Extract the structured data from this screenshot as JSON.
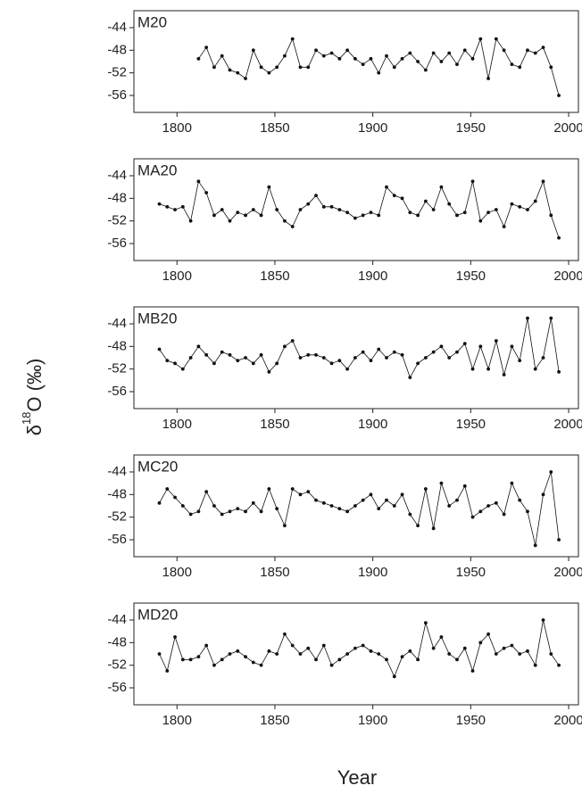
{
  "shared": {
    "x_label": "Year",
    "y_label": {
      "symbol": "δ",
      "sup": "18",
      "rest": "O (‰)"
    }
  },
  "chart_data": [
    {
      "type": "line",
      "xlim": [
        1778,
        2005
      ],
      "xticks": [
        1800,
        1850,
        1900,
        1950,
        2000
      ],
      "ylim": [
        -59,
        -41
      ],
      "yticks": [
        -44,
        -48,
        -52,
        -56
      ],
      "x": [
        1811,
        1815,
        1819,
        1823,
        1827,
        1831,
        1835,
        1839,
        1843,
        1847,
        1851,
        1855,
        1859,
        1863,
        1867,
        1871,
        1875,
        1879,
        1883,
        1887,
        1891,
        1895,
        1899,
        1903,
        1907,
        1911,
        1915,
        1919,
        1923,
        1927,
        1931,
        1935,
        1939,
        1943,
        1947,
        1951,
        1955,
        1959,
        1963,
        1967,
        1971,
        1975,
        1979,
        1983,
        1987,
        1991,
        1995
      ],
      "series": [
        {
          "name": "M20",
          "color": "#111111",
          "values": [
            -49.5,
            -47.5,
            -51,
            -49,
            -51.5,
            -52,
            -53,
            -48,
            -51,
            -52,
            -51,
            -49,
            -46,
            -51,
            -51,
            -48,
            -49,
            -48.5,
            -49.5,
            -48,
            -49.5,
            -50.5,
            -49.5,
            -52,
            -49,
            -51,
            -49.5,
            -48.5,
            -50,
            -51.5,
            -48.5,
            -50,
            -48.5,
            -50.5,
            -48,
            -49.5,
            -46,
            -53,
            -46,
            -48,
            -50.5,
            -51,
            -48,
            -48.5,
            -47.5,
            -51,
            -56
          ]
        }
      ]
    },
    {
      "type": "line",
      "xlim": [
        1778,
        2005
      ],
      "xticks": [
        1800,
        1850,
        1900,
        1950,
        2000
      ],
      "ylim": [
        -59,
        -41
      ],
      "yticks": [
        -44,
        -48,
        -52,
        -56
      ],
      "x": [
        1791,
        1795,
        1799,
        1803,
        1807,
        1811,
        1815,
        1819,
        1823,
        1827,
        1831,
        1835,
        1839,
        1843,
        1847,
        1851,
        1855,
        1859,
        1863,
        1867,
        1871,
        1875,
        1879,
        1883,
        1887,
        1891,
        1895,
        1899,
        1903,
        1907,
        1911,
        1915,
        1919,
        1923,
        1927,
        1931,
        1935,
        1939,
        1943,
        1947,
        1951,
        1955,
        1959,
        1963,
        1967,
        1971,
        1975,
        1979,
        1983,
        1987,
        1991,
        1995
      ],
      "series": [
        {
          "name": "MA20",
          "color": "#111111",
          "values": [
            -49,
            -49.5,
            -50,
            -49.5,
            -52,
            -45,
            -47,
            -51,
            -50,
            -52,
            -50.5,
            -51,
            -50,
            -51,
            -46,
            -50,
            -52,
            -53,
            -50,
            -49,
            -47.5,
            -49.5,
            -49.5,
            -50,
            -50.5,
            -51.5,
            -51,
            -50.5,
            -51,
            -46,
            -47.5,
            -48,
            -50.5,
            -51,
            -48.5,
            -50,
            -46,
            -49,
            -51,
            -50.5,
            -45,
            -52,
            -50.5,
            -50,
            -53,
            -49,
            -49.5,
            -50,
            -48.5,
            -45,
            -51,
            -55
          ]
        }
      ]
    },
    {
      "type": "line",
      "xlim": [
        1778,
        2005
      ],
      "xticks": [
        1800,
        1850,
        1900,
        1950,
        2000
      ],
      "ylim": [
        -59,
        -41
      ],
      "yticks": [
        -44,
        -48,
        -52,
        -56
      ],
      "x": [
        1791,
        1795,
        1799,
        1803,
        1807,
        1811,
        1815,
        1819,
        1823,
        1827,
        1831,
        1835,
        1839,
        1843,
        1847,
        1851,
        1855,
        1859,
        1863,
        1867,
        1871,
        1875,
        1879,
        1883,
        1887,
        1891,
        1895,
        1899,
        1903,
        1907,
        1911,
        1915,
        1919,
        1923,
        1927,
        1931,
        1935,
        1939,
        1943,
        1947,
        1951,
        1955,
        1959,
        1963,
        1967,
        1971,
        1975,
        1979,
        1983,
        1987,
        1991,
        1995
      ],
      "series": [
        {
          "name": "MB20",
          "color": "#111111",
          "values": [
            -48.5,
            -50.5,
            -51,
            -52,
            -50,
            -48,
            -49.5,
            -51,
            -49,
            -49.5,
            -50.5,
            -50,
            -51,
            -49.5,
            -52.5,
            -51,
            -48,
            -47,
            -50,
            -49.5,
            -49.5,
            -50,
            -51,
            -50.5,
            -52,
            -50,
            -49,
            -50.5,
            -48.5,
            -50,
            -49,
            -49.5,
            -53.5,
            -51,
            -50,
            -49,
            -48,
            -50,
            -49,
            -47.5,
            -52,
            -48,
            -52,
            -47,
            -53,
            -48,
            -50.5,
            -43,
            -52,
            -50,
            -43,
            -52.5
          ]
        }
      ]
    },
    {
      "type": "line",
      "xlim": [
        1778,
        2005
      ],
      "xticks": [
        1800,
        1850,
        1900,
        1950,
        2000
      ],
      "ylim": [
        -59,
        -41
      ],
      "yticks": [
        -44,
        -48,
        -52,
        -56
      ],
      "x": [
        1791,
        1795,
        1799,
        1803,
        1807,
        1811,
        1815,
        1819,
        1823,
        1827,
        1831,
        1835,
        1839,
        1843,
        1847,
        1851,
        1855,
        1859,
        1863,
        1867,
        1871,
        1875,
        1879,
        1883,
        1887,
        1891,
        1895,
        1899,
        1903,
        1907,
        1911,
        1915,
        1919,
        1923,
        1927,
        1931,
        1935,
        1939,
        1943,
        1947,
        1951,
        1955,
        1959,
        1963,
        1967,
        1971,
        1975,
        1979,
        1983,
        1987,
        1991,
        1995
      ],
      "series": [
        {
          "name": "MC20",
          "color": "#111111",
          "values": [
            -49.5,
            -47,
            -48.5,
            -50,
            -51.5,
            -51,
            -47.5,
            -50,
            -51.5,
            -51,
            -50.5,
            -51,
            -49.5,
            -51,
            -47,
            -50.5,
            -53.5,
            -47,
            -48,
            -47.5,
            -49,
            -49.5,
            -50,
            -50.5,
            -51,
            -50,
            -49,
            -48,
            -50.5,
            -49,
            -50,
            -48,
            -51.5,
            -53.5,
            -47,
            -54,
            -46,
            -50,
            -49,
            -46.5,
            -52,
            -51,
            -50,
            -49.5,
            -51.5,
            -46,
            -49,
            -51,
            -57,
            -48,
            -44,
            -56
          ]
        }
      ]
    },
    {
      "type": "line",
      "xlim": [
        1778,
        2005
      ],
      "xticks": [
        1800,
        1850,
        1900,
        1950,
        2000
      ],
      "ylim": [
        -59,
        -41
      ],
      "yticks": [
        -44,
        -48,
        -52,
        -56
      ],
      "x": [
        1791,
        1795,
        1799,
        1803,
        1807,
        1811,
        1815,
        1819,
        1823,
        1827,
        1831,
        1835,
        1839,
        1843,
        1847,
        1851,
        1855,
        1859,
        1863,
        1867,
        1871,
        1875,
        1879,
        1883,
        1887,
        1891,
        1895,
        1899,
        1903,
        1907,
        1911,
        1915,
        1919,
        1923,
        1927,
        1931,
        1935,
        1939,
        1943,
        1947,
        1951,
        1955,
        1959,
        1963,
        1967,
        1971,
        1975,
        1979,
        1983,
        1987,
        1991,
        1995
      ],
      "series": [
        {
          "name": "MD20",
          "color": "#111111",
          "values": [
            -50,
            -53,
            -47,
            -51,
            -51,
            -50.5,
            -48.5,
            -52,
            -51,
            -50,
            -49.5,
            -50.5,
            -51.5,
            -52,
            -49.5,
            -50,
            -46.5,
            -48.5,
            -50,
            -49,
            -51,
            -48.5,
            -52,
            -51,
            -50,
            -49,
            -48.5,
            -49.5,
            -50,
            -51,
            -54,
            -50.5,
            -49.5,
            -51,
            -44.5,
            -49,
            -47,
            -50,
            -51,
            -49,
            -53,
            -48,
            -46.5,
            -50,
            -49,
            -48.5,
            -50,
            -49.5,
            -52,
            -44,
            -50,
            -52
          ]
        }
      ]
    }
  ]
}
